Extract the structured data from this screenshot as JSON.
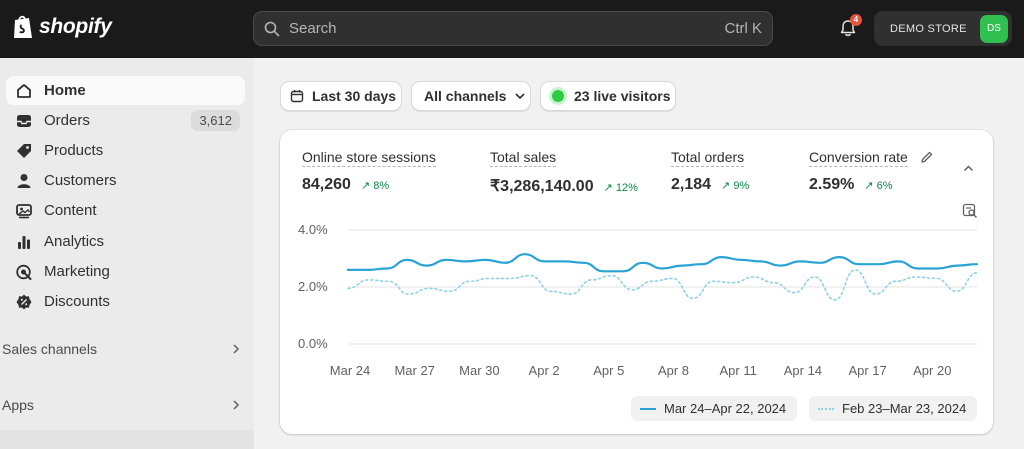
{
  "topbar": {
    "brand": "shopify",
    "search_placeholder": "Search",
    "search_shortcut": "Ctrl K",
    "notification_count": "4",
    "store_name": "DEMO STORE",
    "store_initials": "DS"
  },
  "sidebar": {
    "items": [
      {
        "label": "Home",
        "icon": "home-icon",
        "active": true
      },
      {
        "label": "Orders",
        "icon": "inbox-icon",
        "count": "3,612"
      },
      {
        "label": "Products",
        "icon": "tag-icon"
      },
      {
        "label": "Customers",
        "icon": "person-icon"
      },
      {
        "label": "Content",
        "icon": "content-icon"
      },
      {
        "label": "Analytics",
        "icon": "bar-chart-icon"
      },
      {
        "label": "Marketing",
        "icon": "target-icon"
      },
      {
        "label": "Discounts",
        "icon": "discount-icon"
      }
    ],
    "sections": [
      {
        "label": "Sales channels"
      },
      {
        "label": "Apps"
      }
    ]
  },
  "filters": {
    "date_range": "Last 30 days",
    "channels": "All channels",
    "live_visitors": "23 live visitors"
  },
  "metrics": [
    {
      "label": "Online store sessions",
      "value": "84,260",
      "change": "8%"
    },
    {
      "label": "Total sales",
      "value": "₹3,286,140.00",
      "change": "12%"
    },
    {
      "label": "Total orders",
      "value": "2,184",
      "change": "9%"
    },
    {
      "label": "Conversion rate",
      "value": "2.59%",
      "change": "6%"
    }
  ],
  "chart_data": {
    "type": "line",
    "y_ticks": [
      "4.0%",
      "2.0%",
      "0.0%"
    ],
    "ylim": [
      0,
      4
    ],
    "x_ticks": [
      "Mar 24",
      "Mar 27",
      "Mar 30",
      "Apr 2",
      "Apr 5",
      "Apr 8",
      "Apr 11",
      "Apr 14",
      "Apr 17",
      "Apr 20"
    ],
    "series": [
      {
        "name": "Mar 24–Apr 22, 2024",
        "style": "solid",
        "color": "#29a3d6",
        "values": [
          2.6,
          2.6,
          2.65,
          2.95,
          2.75,
          2.95,
          2.9,
          2.95,
          2.85,
          3.15,
          2.9,
          2.9,
          2.85,
          2.55,
          2.55,
          2.85,
          2.65,
          2.75,
          2.8,
          3.05,
          2.95,
          2.9,
          2.75,
          2.9,
          2.85,
          3.05,
          2.8,
          2.8,
          2.9,
          2.65,
          2.65,
          2.75,
          2.8
        ]
      },
      {
        "name": "Feb 23–Mar 23, 2024",
        "style": "dotted",
        "color": "#8fd0ea",
        "values": [
          1.95,
          2.25,
          2.2,
          1.75,
          1.95,
          1.85,
          2.2,
          2.3,
          2.3,
          2.4,
          1.85,
          1.75,
          2.25,
          2.4,
          1.9,
          2.2,
          2.3,
          1.6,
          2.2,
          2.15,
          2.35,
          2.15,
          1.8,
          2.35,
          1.55,
          2.6,
          1.75,
          2.2,
          2.35,
          2.3,
          1.85,
          2.5
        ]
      }
    ]
  }
}
